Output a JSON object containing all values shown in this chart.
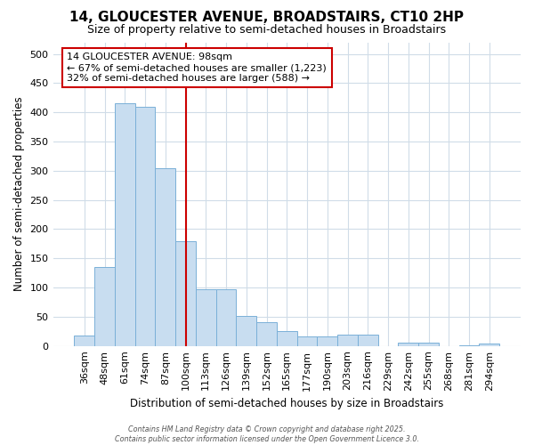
{
  "title1": "14, GLOUCESTER AVENUE, BROADSTAIRS, CT10 2HP",
  "title2": "Size of property relative to semi-detached houses in Broadstairs",
  "xlabel": "Distribution of semi-detached houses by size in Broadstairs",
  "ylabel": "Number of semi-detached properties",
  "categories": [
    "36sqm",
    "48sqm",
    "61sqm",
    "74sqm",
    "87sqm",
    "100sqm",
    "113sqm",
    "126sqm",
    "139sqm",
    "152sqm",
    "165sqm",
    "177sqm",
    "190sqm",
    "203sqm",
    "216sqm",
    "229sqm",
    "242sqm",
    "255sqm",
    "268sqm",
    "281sqm",
    "294sqm"
  ],
  "values": [
    18,
    135,
    415,
    410,
    305,
    180,
    97,
    97,
    52,
    41,
    26,
    17,
    16,
    20,
    20,
    0,
    6,
    6,
    0,
    1,
    4
  ],
  "bar_color": "#c8ddf0",
  "bar_edge_color": "#7ab0d8",
  "vline_color": "#cc0000",
  "vline_position": 5.5,
  "annotation_title": "14 GLOUCESTER AVENUE: 98sqm",
  "annotation_line1": "← 67% of semi-detached houses are smaller (1,223)",
  "annotation_line2": "32% of semi-detached houses are larger (588) →",
  "annotation_box_color": "white",
  "annotation_box_edge": "#cc0000",
  "ylim": [
    0,
    520
  ],
  "yticks": [
    0,
    50,
    100,
    150,
    200,
    250,
    300,
    350,
    400,
    450,
    500
  ],
  "footnote_line1": "Contains HM Land Registry data © Crown copyright and database right 2025.",
  "footnote_line2": "Contains public sector information licensed under the Open Government Licence 3.0.",
  "bg_color": "#ffffff",
  "grid_color": "#d0dce8"
}
